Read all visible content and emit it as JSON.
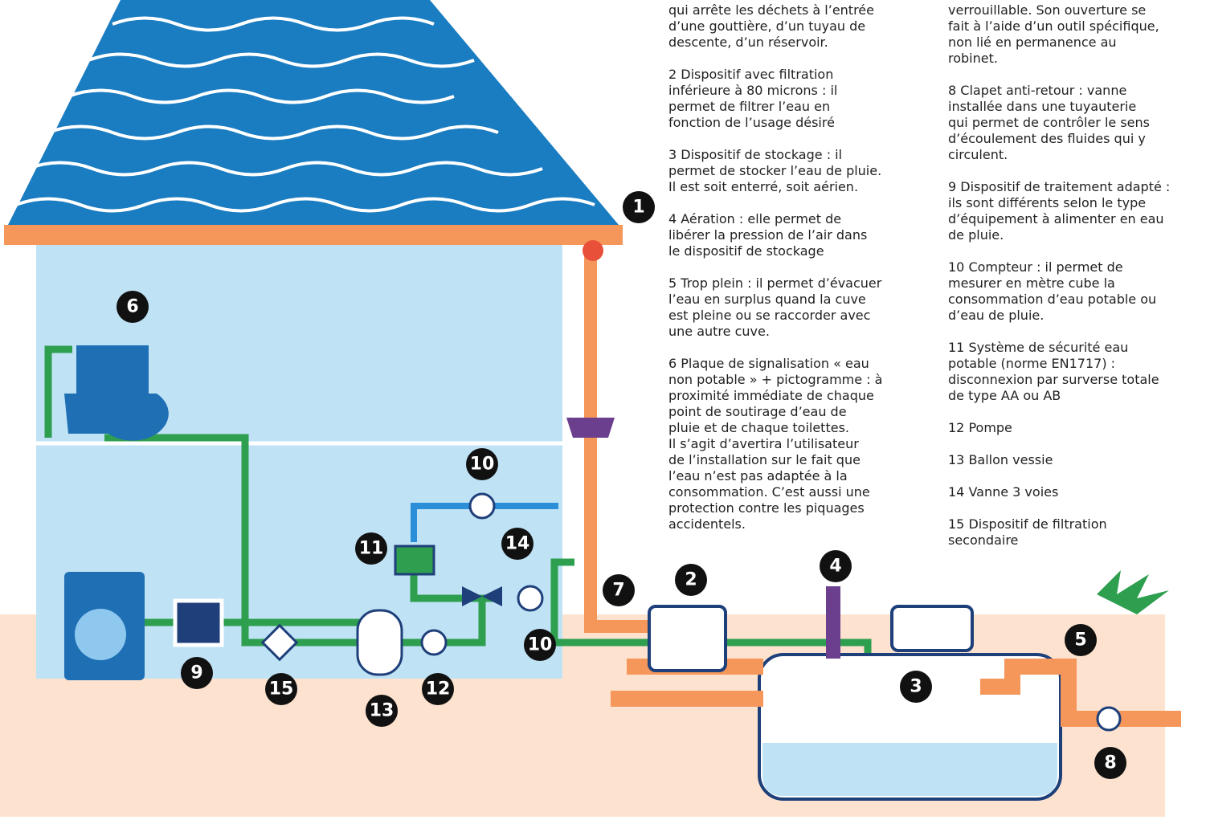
{
  "legend": {
    "col1": [
      {
        "lines": [
          "qui arrête les déchets à l’entrée",
          "d’une gouttière, d’un tuyau de",
          "descente, d’un réservoir."
        ]
      },
      {
        "lines": [
          "2 Dispositif avec filtration",
          "inférieure à 80 microns : il",
          "permet de filtrer l’eau en",
          "fonction de l’usage désiré"
        ]
      },
      {
        "lines": [
          "3 Dispositif de stockage : il",
          "permet de stocker l’eau de pluie.",
          "Il est soit enterré, soit aérien."
        ]
      },
      {
        "lines": [
          "4 Aération : elle permet de",
          "libérer la pression de l’air dans",
          "le dispositif de stockage"
        ]
      },
      {
        "lines": [
          "5 Trop plein : il permet d’évacuer",
          "l’eau en surplus quand la cuve",
          "est pleine ou se raccorder avec",
          "une autre cuve."
        ]
      },
      {
        "lines": [
          "6 Plaque de signalisation « eau",
          "non potable » + pictogramme : à",
          "proximité immédiate de chaque",
          "point de soutirage d’eau de",
          "pluie et de chaque toilettes.",
          "Il s’agit d’avertira l’utilisateur",
          "de l’installation sur le fait que",
          "l’eau n’est pas adaptée à la",
          "consommation. C’est aussi une",
          "protection contre les piquages",
          "accidentels."
        ]
      }
    ],
    "col2": [
      {
        "lines": [
          "verrouillable. Son ouverture se",
          "fait à l’aide d’un outil spécifique,",
          "non lié en permanence au",
          "robinet."
        ]
      },
      {
        "lines": [
          "8 Clapet anti-retour : vanne",
          "installée dans une tuyauterie",
          "qui permet de contrôler le sens",
          "d’écoulement des fluides qui y",
          "circulent."
        ]
      },
      {
        "lines": [
          "9 Dispositif de traitement adapté :",
          "ils sont différents selon le type",
          "d’équipement à alimenter en eau",
          "de pluie."
        ]
      },
      {
        "lines": [
          "10 Compteur : il permet de",
          "mesurer en mètre cube la",
          "consommation d’eau potable ou",
          "d’eau de pluie."
        ]
      },
      {
        "lines": [
          "11 Système de sécurité eau",
          "potable (norme EN1717) :",
          "disconnexion par surverse totale",
          "de type AA ou AB"
        ]
      },
      {
        "lines": [
          "12 Pompe"
        ]
      },
      {
        "lines": [
          "13 Ballon vessie"
        ]
      },
      {
        "lines": [
          "14 Vanne 3 voies"
        ]
      },
      {
        "lines": [
          "15 Dispositif de filtration",
          "secondaire"
        ]
      }
    ]
  },
  "badges": [
    {
      "label": "1"
    },
    {
      "label": "6"
    },
    {
      "label": "10"
    },
    {
      "label": "11"
    },
    {
      "label": "14"
    },
    {
      "label": "7"
    },
    {
      "label": "2"
    },
    {
      "label": "4"
    },
    {
      "label": "10"
    },
    {
      "label": "5"
    },
    {
      "label": "3"
    },
    {
      "label": "9"
    },
    {
      "label": "15"
    },
    {
      "label": "12"
    },
    {
      "label": "13"
    },
    {
      "label": "8"
    }
  ]
}
